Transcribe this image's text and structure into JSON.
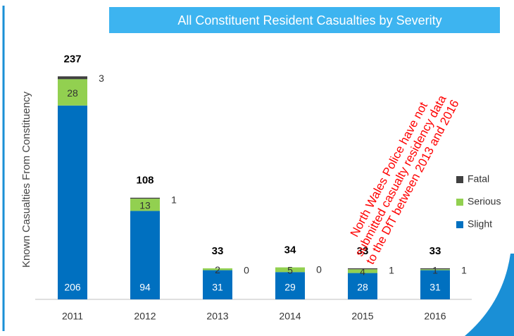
{
  "chart_data": {
    "type": "stacked_bar",
    "title": "All Constituent Resident Casualties by Severity",
    "y_label": "Known Casualties From Constituency",
    "categories": [
      "2011",
      "2012",
      "2013",
      "2014",
      "2015",
      "2016"
    ],
    "series": [
      {
        "name": "Slight",
        "color": "#0070c0",
        "values": [
          206,
          94,
          31,
          29,
          28,
          31
        ]
      },
      {
        "name": "Serious",
        "color": "#92d050",
        "values": [
          28,
          13,
          2,
          5,
          4,
          1
        ]
      },
      {
        "name": "Fatal",
        "color": "#404040",
        "values": [
          3,
          1,
          0,
          0,
          1,
          1
        ]
      }
    ],
    "totals": [
      237,
      108,
      33,
      34,
      33,
      33
    ],
    "ylim": [
      0,
      250
    ],
    "annotation": {
      "lines": [
        "North Wales Police have not",
        "submitted casualty residency data",
        "to the DfT between 2013 and 2016"
      ],
      "color": "#ff0000"
    }
  }
}
